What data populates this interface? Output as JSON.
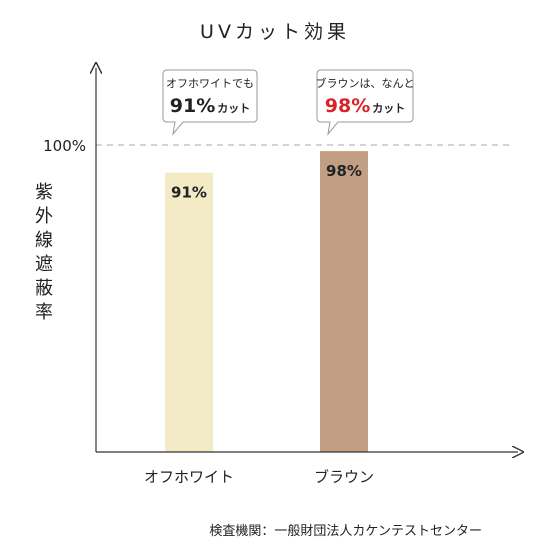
{
  "chart_data": {
    "type": "bar",
    "title": "UVカット効果",
    "ylabel": "紫外線遮蔽率",
    "ylim": [
      0,
      100
    ],
    "reference_line": {
      "value": 100,
      "label": "100%"
    },
    "categories": [
      "オフホワイト",
      "ブラウン"
    ],
    "values": [
      91,
      98
    ],
    "value_labels": [
      "91%",
      "98%"
    ],
    "colors": [
      "#f2ebc6",
      "#c29f82"
    ],
    "callouts": [
      {
        "top": "オフホワイトでも",
        "big": "91%",
        "suffix": "カット",
        "big_color": "#222222"
      },
      {
        "top": "ブラウンは、なんと",
        "big": "98%",
        "suffix": "カット",
        "big_color": "#d9222a"
      }
    ],
    "source": "検査機関：一般財団法人カケンテストセンター"
  }
}
